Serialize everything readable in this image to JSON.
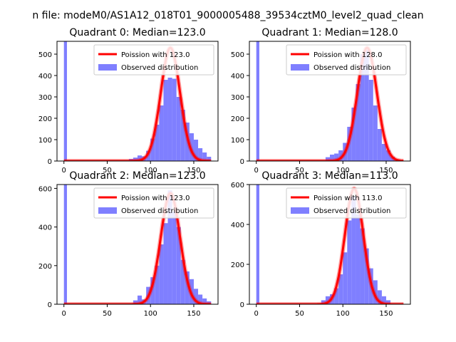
{
  "figure": {
    "suptitle": "n file: modeM0/AS1A12_018T01_9000005488_39534cztM0_level2_quad_clean"
  },
  "chart_data": [
    {
      "type": "bar",
      "title": "Quadrant 0: Median=123.0",
      "xlim": [
        -8,
        178
      ],
      "ylim": [
        0,
        560
      ],
      "xticks": [
        0,
        50,
        100,
        150
      ],
      "yticks": [
        0,
        100,
        200,
        300,
        400,
        500
      ],
      "grid": false,
      "legend_position": "top-right",
      "legend": [
        "Poission with 123.0",
        "Observed distribution"
      ],
      "colors": {
        "poisson": "#ff0000",
        "hist": "#7f7fff"
      },
      "poisson_mean": 123,
      "poisson_peak": 530,
      "poisson_sigma": 11.1,
      "hist": {
        "bins": [
          [
            0,
            3.5,
            560
          ],
          [
            75,
            80,
            10
          ],
          [
            80,
            85,
            16
          ],
          [
            85,
            90,
            26
          ],
          [
            90,
            95,
            22
          ],
          [
            95,
            100,
            48
          ],
          [
            100,
            105,
            105
          ],
          [
            105,
            110,
            170
          ],
          [
            110,
            115,
            260
          ],
          [
            115,
            120,
            380
          ],
          [
            120,
            125,
            390
          ],
          [
            125,
            130,
            385
          ],
          [
            130,
            135,
            300
          ],
          [
            135,
            140,
            240
          ],
          [
            140,
            145,
            180
          ],
          [
            145,
            150,
            130
          ],
          [
            150,
            155,
            100
          ],
          [
            155,
            160,
            60
          ],
          [
            160,
            165,
            40
          ],
          [
            165,
            170,
            20
          ]
        ]
      }
    },
    {
      "type": "bar",
      "title": "Quadrant 1: Median=128.0",
      "xlim": [
        -8,
        178
      ],
      "ylim": [
        0,
        560
      ],
      "xticks": [
        0,
        50,
        100,
        150
      ],
      "yticks": [
        0,
        100,
        200,
        300,
        400,
        500
      ],
      "grid": false,
      "legend_position": "top-right",
      "legend": [
        "Poission with 128.0",
        "Observed distribution"
      ],
      "colors": {
        "poisson": "#ff0000",
        "hist": "#7f7fff"
      },
      "poisson_mean": 128,
      "poisson_peak": 530,
      "poisson_sigma": 11.3,
      "hist": {
        "bins": [
          [
            0,
            3.5,
            560
          ],
          [
            80,
            85,
            18
          ],
          [
            85,
            90,
            30
          ],
          [
            90,
            95,
            35
          ],
          [
            95,
            100,
            50
          ],
          [
            100,
            105,
            85
          ],
          [
            105,
            110,
            160
          ],
          [
            110,
            115,
            250
          ],
          [
            115,
            120,
            360
          ],
          [
            120,
            125,
            500
          ],
          [
            125,
            130,
            520
          ],
          [
            130,
            135,
            380
          ],
          [
            135,
            140,
            260
          ],
          [
            140,
            145,
            150
          ],
          [
            145,
            150,
            80
          ],
          [
            150,
            155,
            50
          ],
          [
            155,
            160,
            20
          ]
        ]
      }
    },
    {
      "type": "bar",
      "title": "Quadrant 2: Median=123.0",
      "xlim": [
        -8,
        178
      ],
      "ylim": [
        0,
        620
      ],
      "xticks": [
        0,
        50,
        100,
        150
      ],
      "yticks": [
        0,
        200,
        400,
        600
      ],
      "grid": false,
      "legend_position": "top-right",
      "legend": [
        "Poission with 123.0",
        "Observed distribution"
      ],
      "colors": {
        "poisson": "#ff0000",
        "hist": "#7f7fff"
      },
      "poisson_mean": 123,
      "poisson_peak": 575,
      "poisson_sigma": 11.1,
      "hist": {
        "bins": [
          [
            0,
            3.5,
            620
          ],
          [
            45,
            50,
            5
          ],
          [
            80,
            85,
            20
          ],
          [
            85,
            90,
            45
          ],
          [
            90,
            95,
            25
          ],
          [
            95,
            100,
            90
          ],
          [
            100,
            105,
            140
          ],
          [
            105,
            110,
            200
          ],
          [
            110,
            115,
            310
          ],
          [
            115,
            120,
            420
          ],
          [
            120,
            125,
            590
          ],
          [
            125,
            130,
            480
          ],
          [
            130,
            135,
            400
          ],
          [
            135,
            140,
            230
          ],
          [
            140,
            145,
            170
          ],
          [
            145,
            150,
            130
          ],
          [
            150,
            155,
            80
          ],
          [
            155,
            160,
            50
          ],
          [
            160,
            165,
            30
          ],
          [
            165,
            170,
            15
          ]
        ]
      }
    },
    {
      "type": "bar",
      "title": "Quadrant 3: Median=113.0",
      "xlim": [
        -8,
        178
      ],
      "ylim": [
        0,
        600
      ],
      "xticks": [
        0,
        50,
        100,
        150
      ],
      "yticks": [
        0,
        200,
        400,
        600
      ],
      "grid": false,
      "legend_position": "top-right",
      "legend": [
        "Poission with 113.0",
        "Observed distribution"
      ],
      "colors": {
        "poisson": "#ff0000",
        "hist": "#7f7fff"
      },
      "poisson_mean": 113,
      "poisson_peak": 580,
      "poisson_sigma": 10.6,
      "hist": {
        "bins": [
          [
            0,
            3.5,
            600
          ],
          [
            75,
            80,
            20
          ],
          [
            80,
            85,
            40
          ],
          [
            85,
            90,
            50
          ],
          [
            90,
            95,
            80
          ],
          [
            95,
            100,
            150
          ],
          [
            100,
            105,
            260
          ],
          [
            105,
            110,
            420
          ],
          [
            110,
            115,
            540
          ],
          [
            115,
            120,
            450
          ],
          [
            120,
            125,
            380
          ],
          [
            125,
            130,
            280
          ],
          [
            130,
            135,
            180
          ],
          [
            135,
            140,
            120
          ],
          [
            140,
            145,
            70
          ],
          [
            145,
            150,
            40
          ],
          [
            150,
            155,
            20
          ]
        ]
      }
    }
  ]
}
